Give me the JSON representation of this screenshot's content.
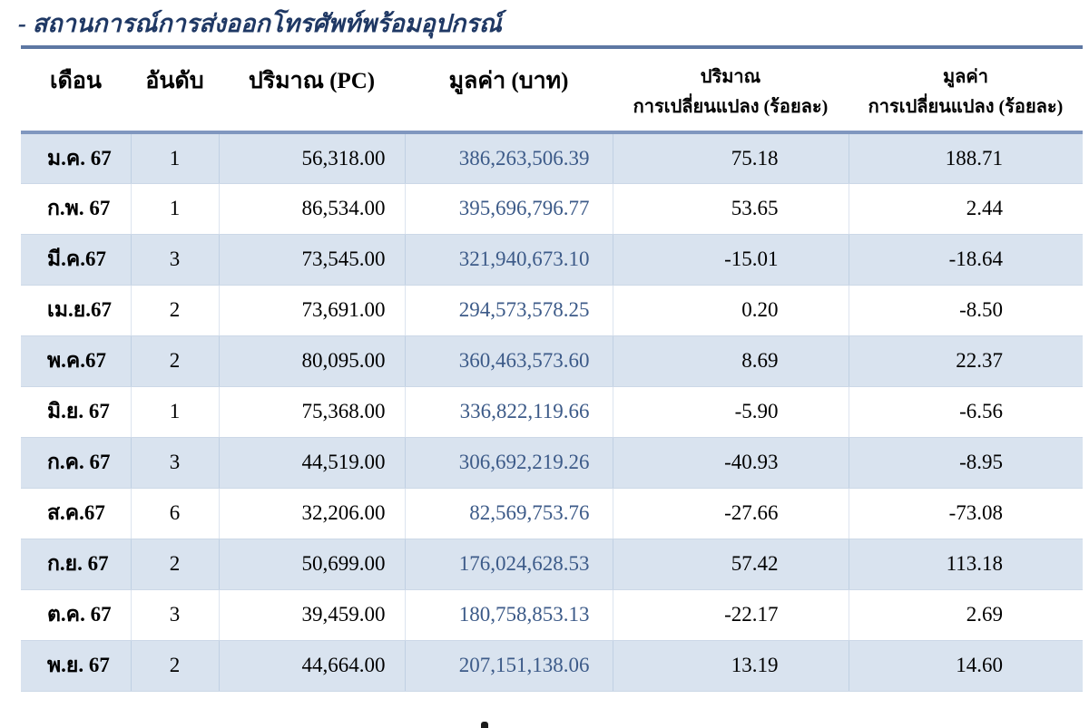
{
  "title": "- สถานการณ์การส่งออกโทรศัพท์พร้อมอุปกรณ์",
  "table": {
    "headers": {
      "month": "เดือน",
      "rank": "อันดับ",
      "quantity": "ปริมาณ (PC)",
      "value": "มูลค่า (บาท)",
      "quantity_change_line1": "ปริมาณ",
      "quantity_change_line2": "การเปลี่ยนแปลง (ร้อยละ)",
      "value_change_line1": "มูลค่า",
      "value_change_line2": "การเปลี่ยนแปลง (ร้อยละ)"
    },
    "rows": [
      {
        "month": "ม.ค. 67",
        "rank": "1",
        "quantity": "56,318.00",
        "value": "386,263,506.39",
        "quantity_change_pct": "75.18",
        "value_change_pct": "188.71"
      },
      {
        "month": "ก.พ. 67",
        "rank": "1",
        "quantity": "86,534.00",
        "value": "395,696,796.77",
        "quantity_change_pct": "53.65",
        "value_change_pct": "2.44"
      },
      {
        "month": "มี.ค.67",
        "rank": "3",
        "quantity": "73,545.00",
        "value": "321,940,673.10",
        "quantity_change_pct": "-15.01",
        "value_change_pct": "-18.64"
      },
      {
        "month": "เม.ย.67",
        "rank": "2",
        "quantity": "73,691.00",
        "value": "294,573,578.25",
        "quantity_change_pct": "0.20",
        "value_change_pct": "-8.50"
      },
      {
        "month": "พ.ค.67",
        "rank": "2",
        "quantity": "80,095.00",
        "value": "360,463,573.60",
        "quantity_change_pct": "8.69",
        "value_change_pct": "22.37"
      },
      {
        "month": "มิ.ย. 67",
        "rank": "1",
        "quantity": "75,368.00",
        "value": "336,822,119.66",
        "quantity_change_pct": "-5.90",
        "value_change_pct": "-6.56"
      },
      {
        "month": "ก.ค. 67",
        "rank": "3",
        "quantity": "44,519.00",
        "value": "306,692,219.26",
        "quantity_change_pct": "-40.93",
        "value_change_pct": "-8.95"
      },
      {
        "month": "ส.ค.67",
        "rank": "6",
        "quantity": "32,206.00",
        "value": "82,569,753.76",
        "quantity_change_pct": "-27.66",
        "value_change_pct": "-73.08"
      },
      {
        "month": "ก.ย. 67",
        "rank": "2",
        "quantity": "50,699.00",
        "value": "176,024,628.53",
        "quantity_change_pct": "57.42",
        "value_change_pct": "113.18"
      },
      {
        "month": "ต.ค. 67",
        "rank": "3",
        "quantity": "39,459.00",
        "value": "180,758,853.13",
        "quantity_change_pct": "-22.17",
        "value_change_pct": "2.69"
      },
      {
        "month": "พ.ย. 67",
        "rank": "2",
        "quantity": "44,664.00",
        "value": "207,151,138.06",
        "quantity_change_pct": "13.19",
        "value_change_pct": "14.60"
      }
    ]
  },
  "colors": {
    "title": "#1F3864",
    "value_text": "#3C5A88",
    "row_band": "#D9E3EF",
    "border_top": "#5D77A3",
    "border_header_bottom": "#8097BF"
  }
}
